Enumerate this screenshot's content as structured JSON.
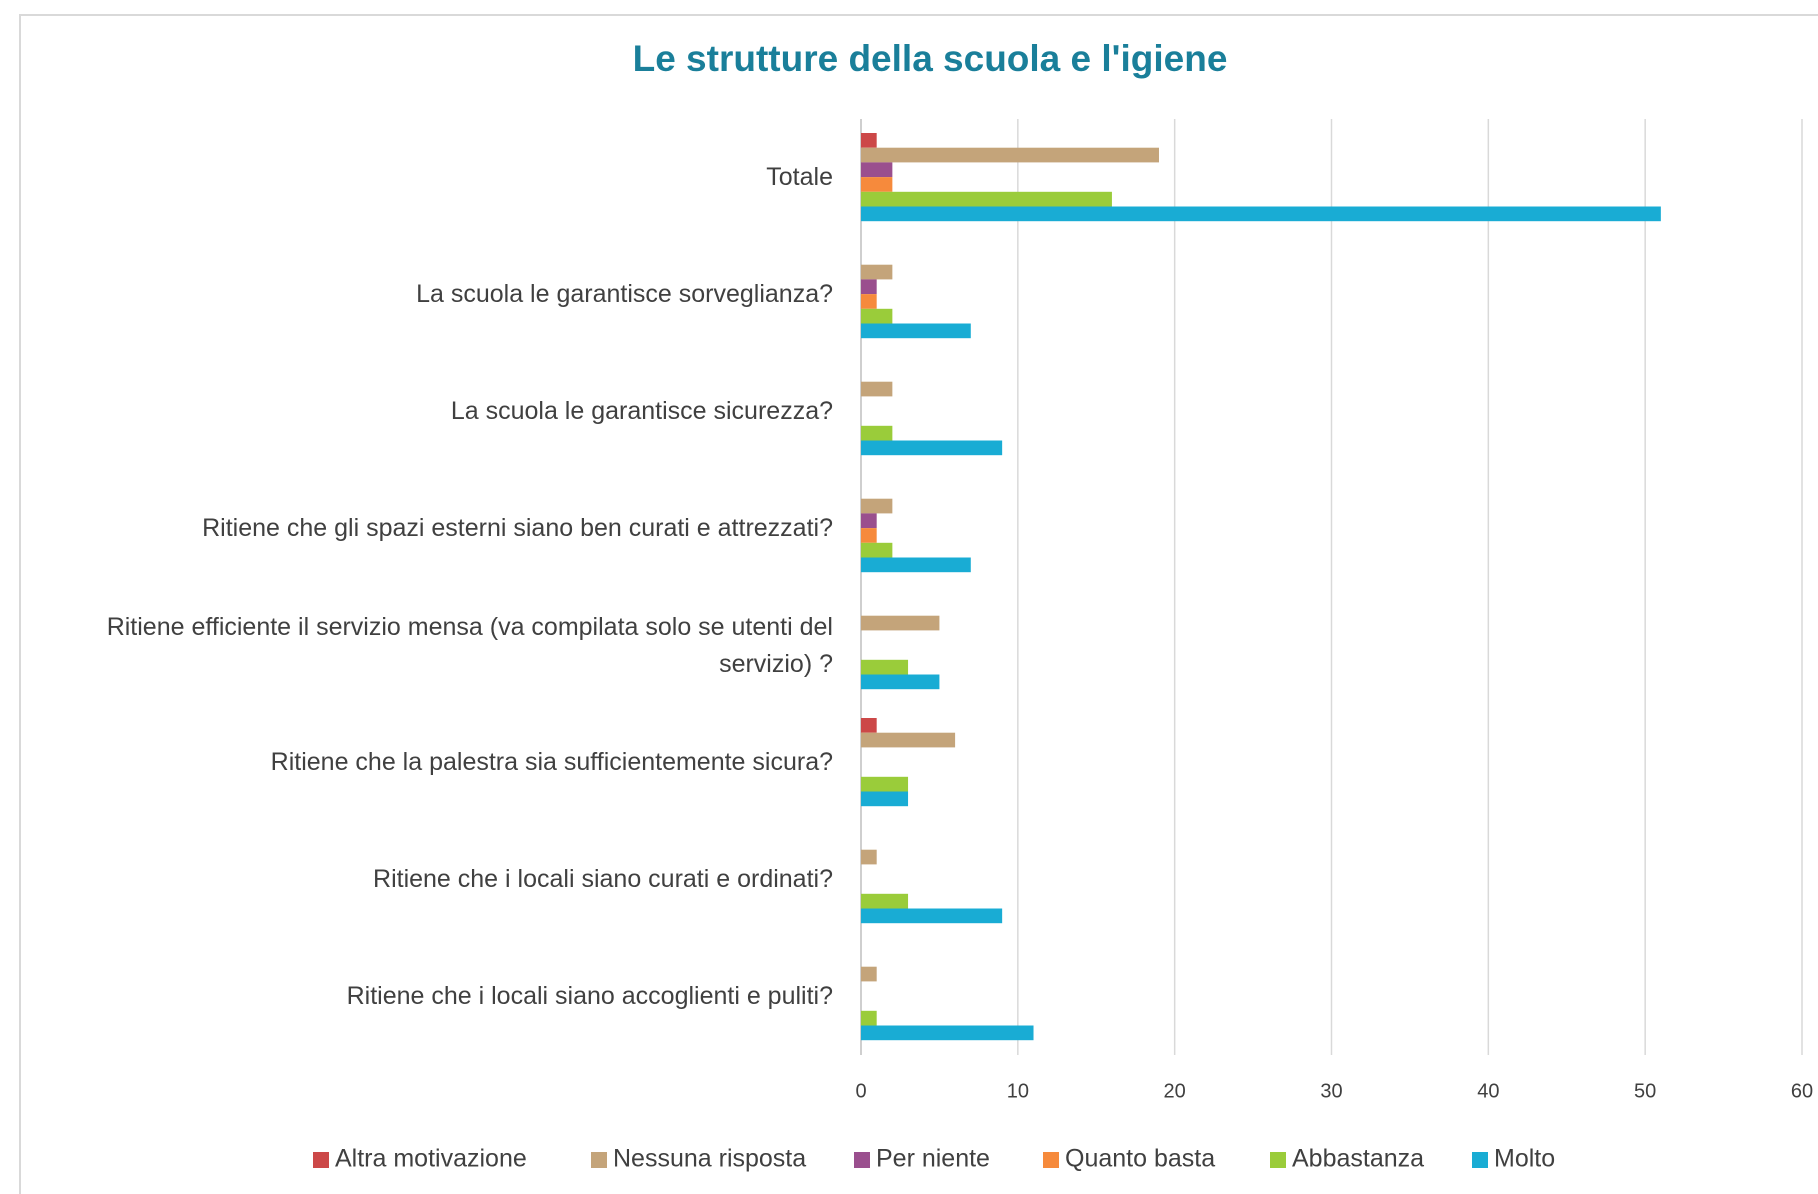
{
  "chart_data": {
    "type": "hbar",
    "title": "Le strutture della scuola e l'igiene",
    "categories": [
      "Totale",
      "La scuola le garantisce sorveglianza?",
      "La scuola le garantisce sicurezza?",
      "Ritiene che gli spazi esterni siano ben curati e attrezzati?",
      "Ritiene efficiente il servizio mensa (va compilata solo se utenti del servizio) ?",
      "Ritiene che la palestra sia sufficientemente sicura?",
      "Ritiene che i locali siano curati e ordinati?",
      "Ritiene che i locali siano accoglienti e puliti?"
    ],
    "series": [
      {
        "name": "Altra motivazione",
        "color": "#cc4848",
        "values": [
          1,
          0,
          0,
          0,
          0,
          1,
          0,
          0
        ]
      },
      {
        "name": "Nessuna risposta",
        "color": "#c4a47a",
        "values": [
          19,
          2,
          2,
          2,
          5,
          6,
          1,
          1
        ]
      },
      {
        "name": "Per niente",
        "color": "#9a4f8e",
        "values": [
          2,
          1,
          0,
          1,
          0,
          0,
          0,
          0
        ]
      },
      {
        "name": "Quanto basta",
        "color": "#f68a3c",
        "values": [
          2,
          1,
          0,
          1,
          0,
          0,
          0,
          0
        ]
      },
      {
        "name": "Abbastanza",
        "color": "#9acc3a",
        "values": [
          16,
          2,
          2,
          2,
          3,
          3,
          3,
          1
        ]
      },
      {
        "name": "Molto",
        "color": "#19acd4",
        "values": [
          51,
          7,
          9,
          7,
          5,
          3,
          9,
          11
        ]
      }
    ],
    "xlim": [
      0,
      60
    ],
    "xticks": [
      0,
      10,
      20,
      30,
      40,
      50,
      60
    ],
    "grid": true,
    "legend": "bottom"
  }
}
